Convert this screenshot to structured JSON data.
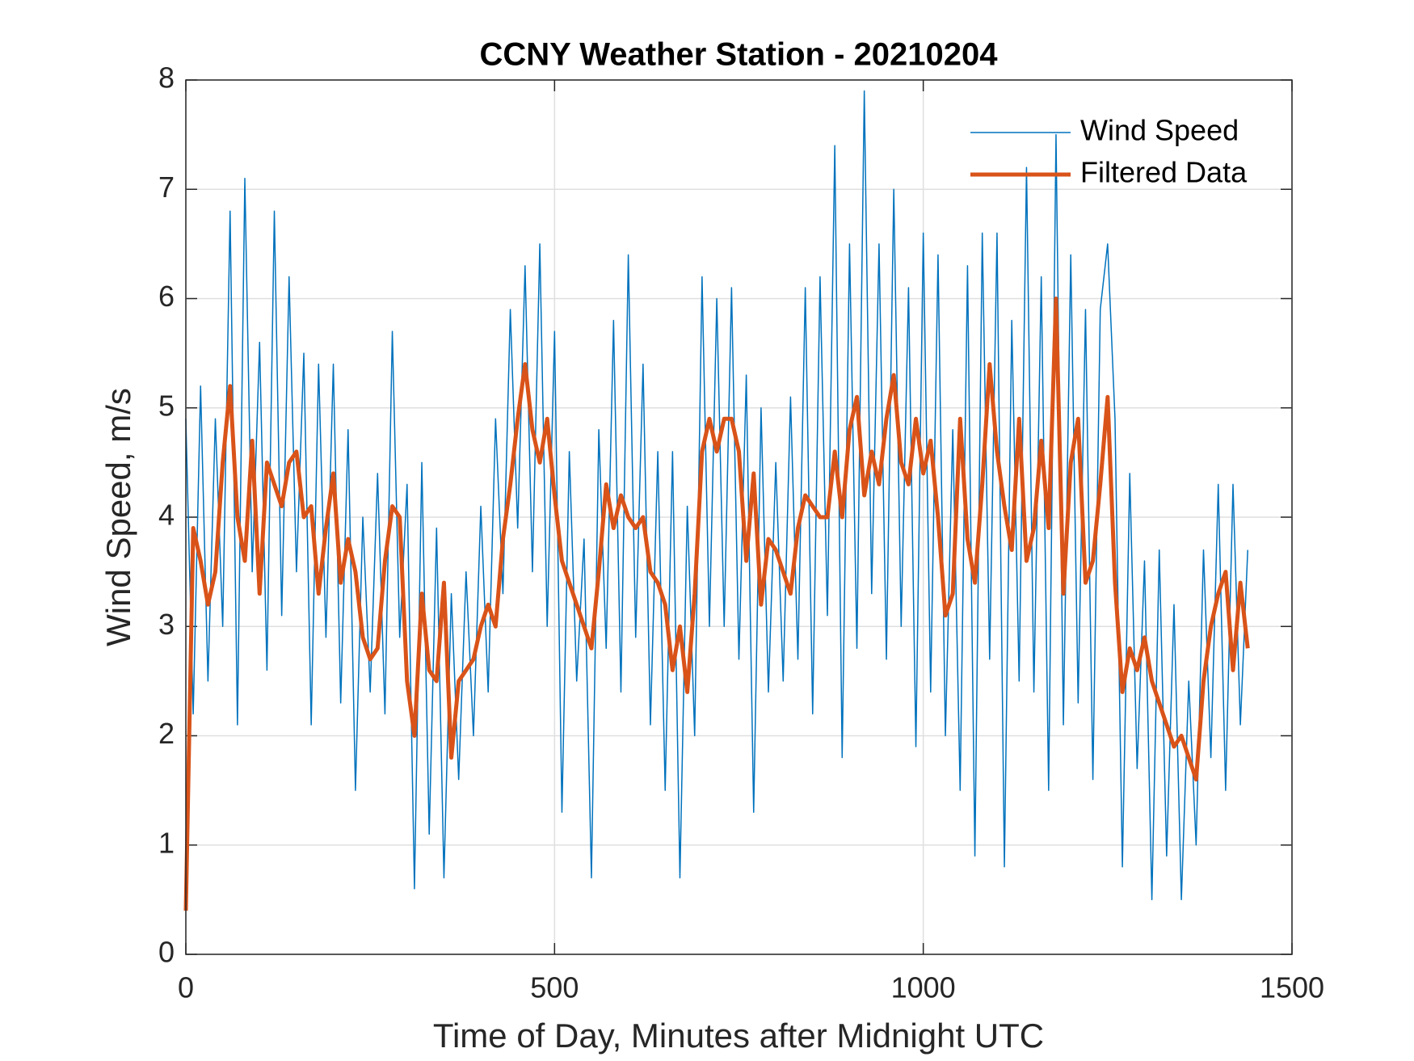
{
  "chart_data": {
    "type": "line",
    "title": "CCNY Weather Station - 20210204",
    "xlabel": "Time of Day, Minutes after Midnight UTC",
    "ylabel": "Wind Speed, m/s",
    "x": [
      0,
      10,
      20,
      30,
      40,
      50,
      60,
      70,
      80,
      90,
      100,
      110,
      120,
      130,
      140,
      150,
      160,
      170,
      180,
      190,
      200,
      210,
      220,
      230,
      240,
      250,
      260,
      270,
      280,
      290,
      300,
      310,
      320,
      330,
      340,
      350,
      360,
      370,
      380,
      390,
      400,
      410,
      420,
      430,
      440,
      450,
      460,
      470,
      480,
      490,
      500,
      510,
      520,
      530,
      540,
      550,
      560,
      570,
      580,
      590,
      600,
      610,
      620,
      630,
      640,
      650,
      660,
      670,
      680,
      690,
      700,
      710,
      720,
      730,
      740,
      750,
      760,
      770,
      780,
      790,
      800,
      810,
      820,
      830,
      840,
      850,
      860,
      870,
      880,
      890,
      900,
      910,
      920,
      930,
      940,
      950,
      960,
      970,
      980,
      990,
      1000,
      1010,
      1020,
      1030,
      1040,
      1050,
      1060,
      1070,
      1080,
      1090,
      1100,
      1110,
      1120,
      1130,
      1140,
      1150,
      1160,
      1170,
      1180,
      1190,
      1200,
      1210,
      1220,
      1230,
      1240,
      1250,
      1260,
      1270,
      1280,
      1290,
      1300,
      1310,
      1320,
      1330,
      1340,
      1350,
      1360,
      1370,
      1380,
      1390,
      1400,
      1410,
      1420,
      1430,
      1440
    ],
    "series": [
      {
        "name": "Wind Speed",
        "color": "#0072bd",
        "width": 1.5,
        "values": [
          4.9,
          2.2,
          5.2,
          2.5,
          4.9,
          3.0,
          6.8,
          2.1,
          7.1,
          3.5,
          5.6,
          2.6,
          6.8,
          3.1,
          6.2,
          3.5,
          5.5,
          2.1,
          5.4,
          2.9,
          5.4,
          2.3,
          4.8,
          1.5,
          4.0,
          2.4,
          4.4,
          2.2,
          5.7,
          2.9,
          4.3,
          0.6,
          4.5,
          1.1,
          3.9,
          0.7,
          3.3,
          1.6,
          3.5,
          2.0,
          4.1,
          2.4,
          4.9,
          3.3,
          5.9,
          3.9,
          6.3,
          3.5,
          6.5,
          3.0,
          5.7,
          1.3,
          4.6,
          2.5,
          3.8,
          0.7,
          4.8,
          2.8,
          5.8,
          2.4,
          6.4,
          2.9,
          5.4,
          2.1,
          4.6,
          1.5,
          4.6,
          0.7,
          4.1,
          2.0,
          6.2,
          3.0,
          6.0,
          3.0,
          6.1,
          2.7,
          5.3,
          1.3,
          5.0,
          2.4,
          4.5,
          2.5,
          5.1,
          2.7,
          6.1,
          2.2,
          6.2,
          3.1,
          7.4,
          1.8,
          6.5,
          2.8,
          7.9,
          3.3,
          6.5,
          2.7,
          7.0,
          3.0,
          6.1,
          1.9,
          6.6,
          2.4,
          6.4,
          2.0,
          4.8,
          1.5,
          6.3,
          0.9,
          6.6,
          2.7,
          6.6,
          0.8,
          5.8,
          2.5,
          7.2,
          2.4,
          6.2,
          1.5,
          7.5,
          2.1,
          6.4,
          2.3,
          5.9,
          1.6,
          5.9,
          6.5,
          4.9,
          0.8,
          4.4,
          1.7,
          3.6,
          0.5,
          3.7,
          0.9,
          3.2,
          0.5,
          2.5,
          1.0,
          3.7,
          1.8,
          4.3,
          1.5,
          4.3,
          2.1,
          3.7
        ]
      },
      {
        "name": "Filtered Data",
        "color": "#d95319",
        "width": 5,
        "values": [
          0.4,
          3.9,
          3.6,
          3.2,
          3.5,
          4.5,
          5.2,
          4.0,
          3.6,
          4.7,
          3.3,
          4.5,
          4.3,
          4.1,
          4.5,
          4.6,
          4.0,
          4.1,
          3.3,
          3.9,
          4.4,
          3.4,
          3.8,
          3.5,
          2.9,
          2.7,
          2.8,
          3.6,
          4.1,
          4.0,
          2.5,
          2.0,
          3.3,
          2.6,
          2.5,
          3.4,
          1.8,
          2.5,
          2.6,
          2.7,
          3.0,
          3.2,
          3.0,
          3.8,
          4.3,
          4.9,
          5.4,
          4.8,
          4.5,
          4.9,
          4.2,
          3.6,
          3.4,
          3.2,
          3.0,
          2.8,
          3.5,
          4.3,
          3.9,
          4.2,
          4.0,
          3.9,
          4.0,
          3.5,
          3.4,
          3.2,
          2.6,
          3.0,
          2.4,
          3.3,
          4.6,
          4.9,
          4.6,
          4.9,
          4.9,
          4.6,
          3.6,
          4.4,
          3.2,
          3.8,
          3.7,
          3.5,
          3.3,
          3.9,
          4.2,
          4.1,
          4.0,
          4.0,
          4.6,
          4.0,
          4.8,
          5.1,
          4.2,
          4.6,
          4.3,
          4.9,
          5.3,
          4.5,
          4.3,
          4.9,
          4.4,
          4.7,
          4.0,
          3.1,
          3.3,
          4.9,
          3.8,
          3.4,
          4.3,
          5.4,
          4.6,
          4.1,
          3.7,
          4.9,
          3.6,
          3.9,
          4.7,
          3.9,
          6.0,
          3.3,
          4.5,
          4.9,
          3.4,
          3.6,
          4.3,
          5.1,
          3.4,
          2.4,
          2.8,
          2.6,
          2.9,
          2.5,
          2.3,
          2.1,
          1.9,
          2.0,
          1.8,
          1.6,
          2.5,
          3.0,
          3.3,
          3.5,
          2.6,
          3.4,
          2.8
        ]
      }
    ],
    "xlim": [
      0,
      1500
    ],
    "xticks": [
      0,
      500,
      1000,
      1500
    ],
    "ylim": [
      0,
      8
    ],
    "yticks": [
      0,
      1,
      2,
      3,
      4,
      5,
      6,
      7,
      8
    ],
    "grid": true,
    "legend": "northeast"
  }
}
